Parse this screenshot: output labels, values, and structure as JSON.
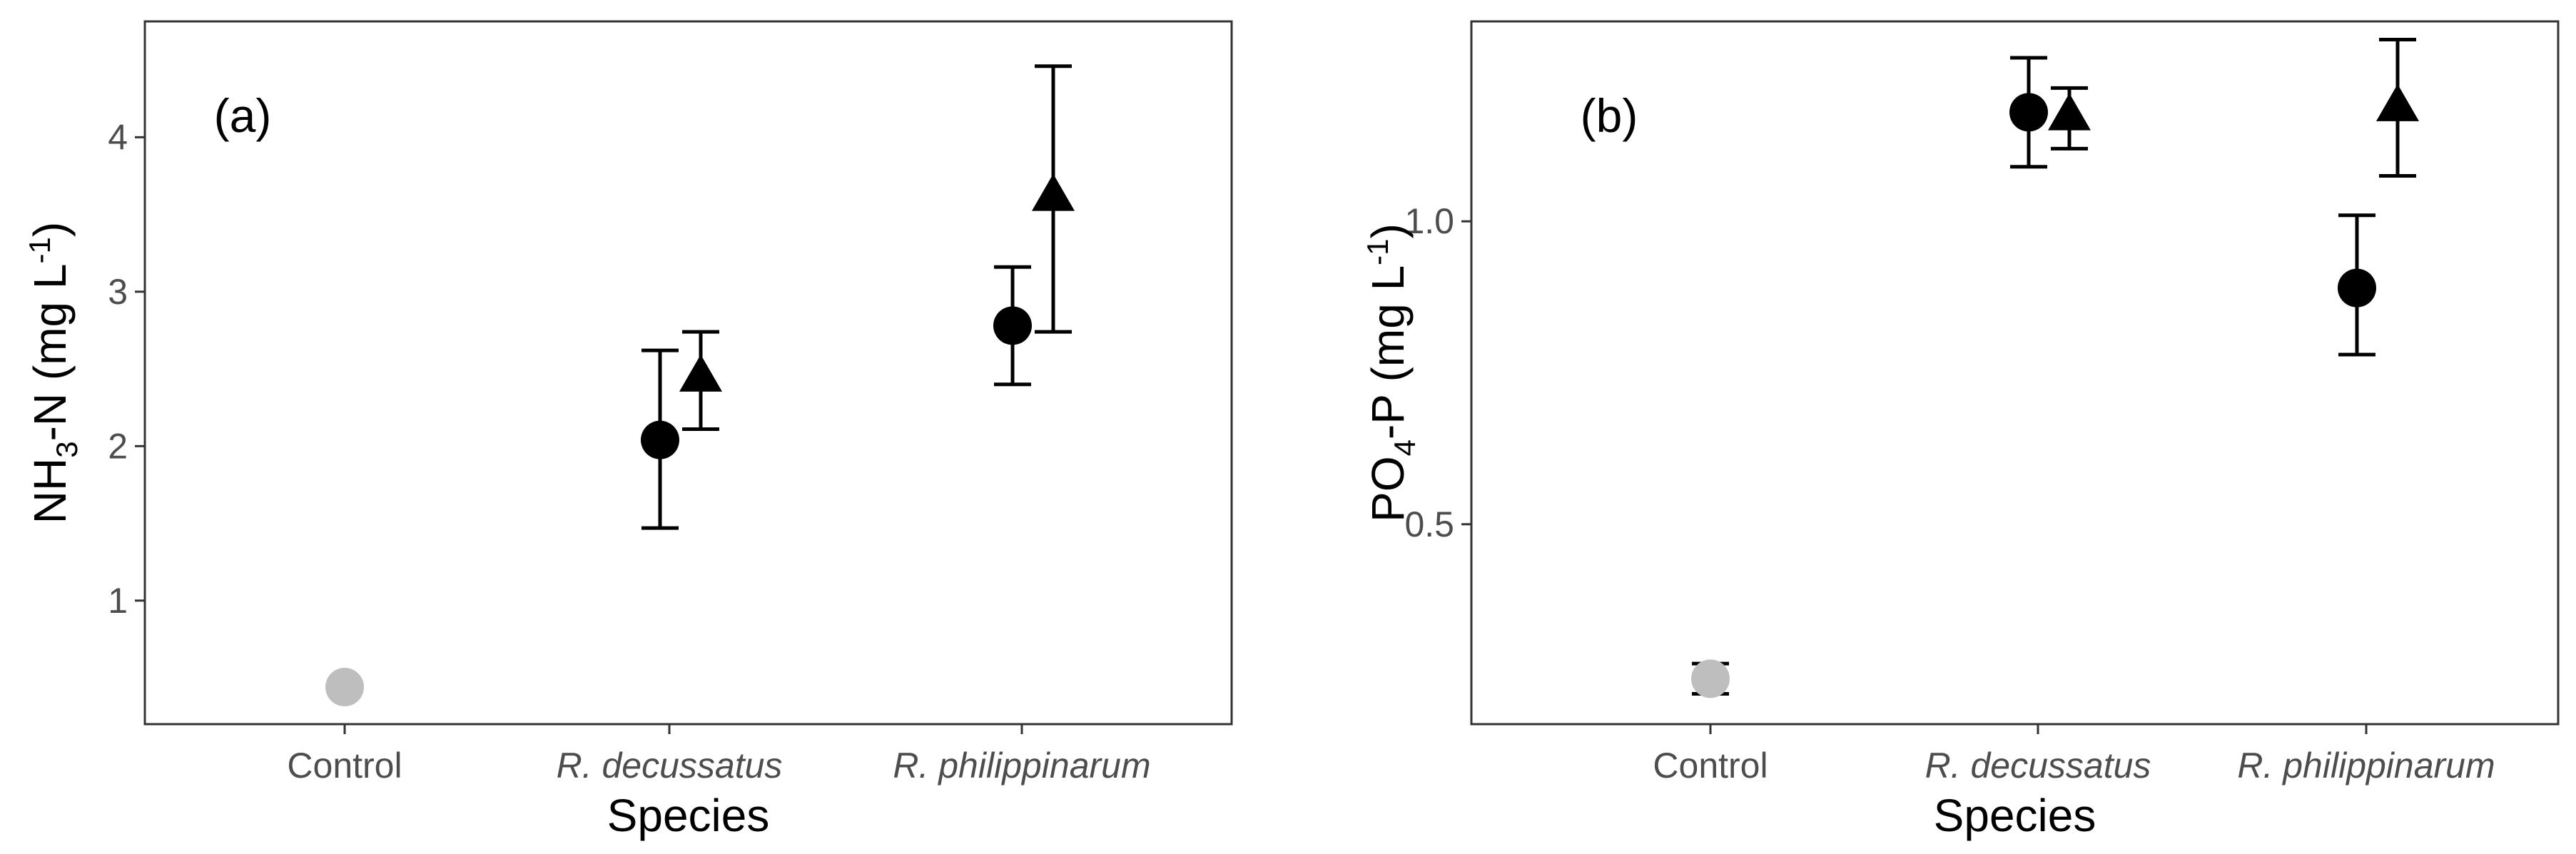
{
  "chart_data": [
    {
      "type": "scatter",
      "panel_label": "(a)",
      "xlabel": "Species",
      "ylabel": {
        "main": "NH",
        "sub": "3",
        "rest": "-N  (mg L",
        "sup": "-1",
        "close": ")"
      },
      "categories": [
        "Control",
        "R. decussatus",
        "R. philippinarum"
      ],
      "category_italic": [
        false,
        true,
        true
      ],
      "yticks": [
        1,
        2,
        3,
        4
      ],
      "ytick_labels": [
        "1",
        "2",
        "3",
        "4"
      ],
      "ylim": [
        0.2,
        4.75
      ],
      "grid": false,
      "series": [
        {
          "marker": "circle",
          "points": [
            {
              "category": "Control",
              "mean": 0.44,
              "lower": 0.43,
              "upper": 0.45,
              "color": "#bebebe"
            },
            {
              "category": "R. decussatus",
              "mean": 2.04,
              "lower": 1.47,
              "upper": 2.62,
              "color": "#000000"
            },
            {
              "category": "R. philippinarum",
              "mean": 2.78,
              "lower": 2.4,
              "upper": 3.16,
              "color": "#000000"
            }
          ]
        },
        {
          "marker": "triangle",
          "points": [
            {
              "category": "R. decussatus",
              "mean": 2.45,
              "lower": 2.11,
              "upper": 2.74,
              "color": "#000000"
            },
            {
              "category": "R. philippinarum",
              "mean": 3.62,
              "lower": 2.74,
              "upper": 4.46,
              "color": "#000000"
            }
          ]
        }
      ]
    },
    {
      "type": "scatter",
      "panel_label": "(b)",
      "xlabel": "Species",
      "ylabel": {
        "main": "PO",
        "sub": "4",
        "rest": "-P  (mg L",
        "sup": "-1",
        "close": ")"
      },
      "categories": [
        "Control",
        "R. decussatus",
        "R. philippinarum"
      ],
      "category_italic": [
        false,
        true,
        true
      ],
      "yticks": [
        0.5,
        1.0
      ],
      "ytick_labels": [
        "0.5",
        "1.0"
      ],
      "ylim": [
        0.17,
        1.33
      ],
      "grid": false,
      "series": [
        {
          "marker": "circle",
          "points": [
            {
              "category": "Control",
              "mean": 0.245,
              "lower": 0.22,
              "upper": 0.27,
              "color": "#bebebe"
            },
            {
              "category": "R. decussatus",
              "mean": 1.18,
              "lower": 1.09,
              "upper": 1.27,
              "color": "#000000"
            },
            {
              "category": "R. philippinarum",
              "mean": 0.89,
              "lower": 0.78,
              "upper": 1.01,
              "color": "#000000"
            }
          ]
        },
        {
          "marker": "triangle",
          "points": [
            {
              "category": "R. decussatus",
              "mean": 1.175,
              "lower": 1.12,
              "upper": 1.22,
              "color": "#000000"
            },
            {
              "category": "R. philippinarum",
              "mean": 1.19,
              "lower": 1.075,
              "upper": 1.3,
              "color": "#000000"
            }
          ]
        }
      ]
    }
  ]
}
